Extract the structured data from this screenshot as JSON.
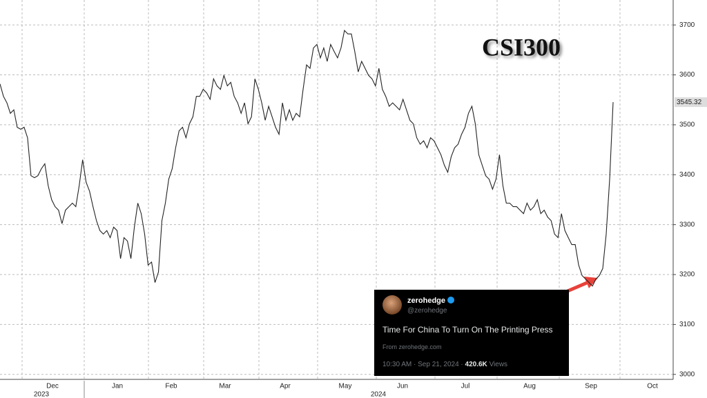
{
  "chart_data": {
    "type": "line",
    "title": "CSI300",
    "x_labels": [
      "Dec",
      "Jan",
      "Feb",
      "Mar",
      "Apr",
      "May",
      "Jun",
      "Jul",
      "Aug",
      "Sep",
      "Oct"
    ],
    "year_labels": [
      "2023",
      "2024"
    ],
    "ylim": [
      2990,
      3750
    ],
    "yticks": [
      3000,
      3100,
      3200,
      3300,
      3400,
      3500,
      3600,
      3700
    ],
    "grid": true,
    "series": [
      {
        "name": "CSI300",
        "color": "#222222",
        "values": [
          3582,
          3557,
          3544,
          3523,
          3530,
          3495,
          3491,
          3495,
          3474,
          3398,
          3394,
          3398,
          3412,
          3422,
          3378,
          3350,
          3336,
          3329,
          3302,
          3329,
          3336,
          3343,
          3336,
          3378,
          3430,
          3385,
          3367,
          3336,
          3308,
          3288,
          3281,
          3288,
          3274,
          3295,
          3288,
          3232,
          3274,
          3267,
          3232,
          3295,
          3343,
          3322,
          3281,
          3219,
          3225,
          3184,
          3205,
          3308,
          3343,
          3391,
          3412,
          3454,
          3488,
          3495,
          3474,
          3502,
          3516,
          3557,
          3557,
          3571,
          3564,
          3551,
          3592,
          3578,
          3571,
          3599,
          3578,
          3585,
          3557,
          3544,
          3523,
          3544,
          3502,
          3516,
          3592,
          3571,
          3544,
          3509,
          3537,
          3516,
          3495,
          3481,
          3544,
          3509,
          3530,
          3509,
          3523,
          3516,
          3571,
          3620,
          3613,
          3654,
          3661,
          3634,
          3654,
          3627,
          3661,
          3647,
          3634,
          3654,
          3689,
          3682,
          3682,
          3647,
          3606,
          3627,
          3613,
          3599,
          3592,
          3578,
          3613,
          3571,
          3557,
          3537,
          3544,
          3537,
          3530,
          3551,
          3530,
          3509,
          3502,
          3474,
          3461,
          3468,
          3454,
          3474,
          3468,
          3454,
          3440,
          3419,
          3405,
          3436,
          3454,
          3461,
          3481,
          3495,
          3523,
          3537,
          3502,
          3440,
          3419,
          3398,
          3391,
          3371,
          3391,
          3440,
          3378,
          3343,
          3343,
          3336,
          3336,
          3329,
          3322,
          3343,
          3329,
          3336,
          3350,
          3322,
          3329,
          3315,
          3308,
          3281,
          3274,
          3322,
          3288,
          3274,
          3260,
          3260,
          3219,
          3198,
          3191,
          3184,
          3177,
          3191,
          3198,
          3212,
          3281,
          3391,
          3545.32
        ]
      }
    ]
  },
  "tweet": {
    "name": "zerohedge",
    "handle": "@zerohedge",
    "text": "Time For China To Turn On The Printing Press",
    "source": "From zerohedge.com",
    "time": "10:30 AM · Sep 21, 2024 ·",
    "views": "420.6K",
    "views_label": "Views"
  }
}
